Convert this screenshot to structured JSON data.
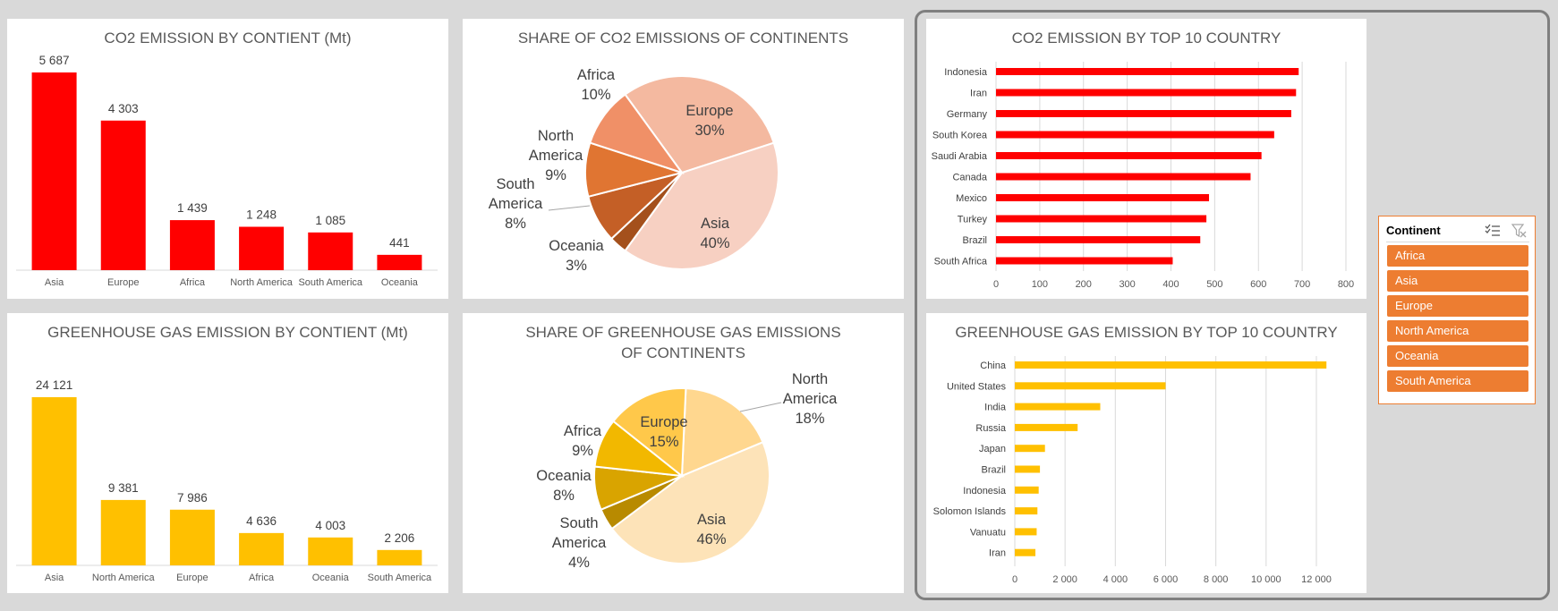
{
  "chart_data": [
    {
      "type": "bar",
      "title": "CO2 EMISSION BY CONTIENT (Mt)",
      "categories": [
        "Asia",
        "Europe",
        "Africa",
        "North America",
        "South America",
        "Oceania"
      ],
      "values": [
        5687,
        4303,
        1439,
        1248,
        1085,
        441
      ],
      "value_labels": [
        "5 687",
        "4 303",
        "1 439",
        "1 248",
        "1 085",
        "441"
      ],
      "color": "#ff0000",
      "grid": false
    },
    {
      "type": "pie",
      "title": "SHARE OF CO2 EMISSIONS OF CONTINENTS",
      "slices": [
        {
          "name": "Europe",
          "value": 30,
          "label": "30%",
          "color": "#f4b9a0"
        },
        {
          "name": "Asia",
          "value": 40,
          "label": "40%",
          "color": "#f7d0c2"
        },
        {
          "name": "Oceania",
          "value": 3,
          "label": "3%",
          "color": "#a4501c"
        },
        {
          "name": "South America",
          "value": 8,
          "label": "8%",
          "color": "#c45f26"
        },
        {
          "name": "North America",
          "value": 9,
          "label": "9%",
          "color": "#e07532"
        },
        {
          "name": "Africa",
          "value": 10,
          "label": "10%",
          "color": "#f09067"
        }
      ]
    },
    {
      "type": "bar",
      "orientation": "horizontal",
      "title": "CO2 EMISSION BY TOP 10 COUNTRY",
      "categories": [
        "Indonesia",
        "Iran",
        "Germany",
        "South Korea",
        "Saudi Arabia",
        "Canada",
        "Mexico",
        "Turkey",
        "Brazil",
        "South Africa"
      ],
      "values": [
        692,
        686,
        675,
        636,
        607,
        582,
        487,
        481,
        467,
        404
      ],
      "xlim": [
        0,
        800
      ],
      "ticks": [
        "0",
        "100",
        "200",
        "300",
        "400",
        "500",
        "600",
        "700",
        "800"
      ],
      "color": "#ff0000",
      "grid": true
    },
    {
      "type": "bar",
      "title": "GREENHOUSE GAS EMISSION BY CONTIENT (Mt)",
      "categories": [
        "Asia",
        "North America",
        "Europe",
        "Africa",
        "Oceania",
        "South America"
      ],
      "values": [
        24121,
        9381,
        7986,
        4636,
        4003,
        2206
      ],
      "value_labels": [
        "24 121",
        "9 381",
        "7 986",
        "4 636",
        "4 003",
        "2 206"
      ],
      "color": "#ffc000",
      "grid": false
    },
    {
      "type": "pie",
      "title": "SHARE OF GREENHOUSE GAS EMISSIONS OF CONTINENTS",
      "slices": [
        {
          "name": "North America",
          "value": 18,
          "label": "18%",
          "color": "#ffd78f"
        },
        {
          "name": "Asia",
          "value": 46,
          "label": "46%",
          "color": "#fde3b8"
        },
        {
          "name": "South America",
          "value": 4,
          "label": "4%",
          "color": "#b88a00"
        },
        {
          "name": "Oceania",
          "value": 8,
          "label": "8%",
          "color": "#d9a400"
        },
        {
          "name": "Africa",
          "value": 9,
          "label": "9%",
          "color": "#f2b800"
        },
        {
          "name": "Europe",
          "value": 15,
          "label": "15%",
          "color": "#ffc84a"
        }
      ]
    },
    {
      "type": "bar",
      "orientation": "horizontal",
      "title": "GREENHOUSE GAS EMISSION BY TOP 10 COUNTRY",
      "categories": [
        "China",
        "United States",
        "India",
        "Russia",
        "Japan",
        "Brazil",
        "Indonesia",
        "Solomon Islands",
        "Vanuatu",
        "Iran"
      ],
      "values": [
        12400,
        6000,
        3400,
        2500,
        1200,
        1000,
        950,
        900,
        870,
        820
      ],
      "xlim": [
        0,
        12000
      ],
      "ticks": [
        "0",
        "2 000",
        "4 000",
        "6 000",
        "8 000",
        "10 000",
        "12 000"
      ],
      "color": "#ffc000",
      "grid": true
    }
  ],
  "slicer": {
    "title": "Continent",
    "items": [
      "Africa",
      "Asia",
      "Europe",
      "North America",
      "Oceania",
      "South America"
    ],
    "color": "#ed7d31",
    "icons": [
      "multi-select-icon",
      "clear-filter-icon"
    ]
  }
}
